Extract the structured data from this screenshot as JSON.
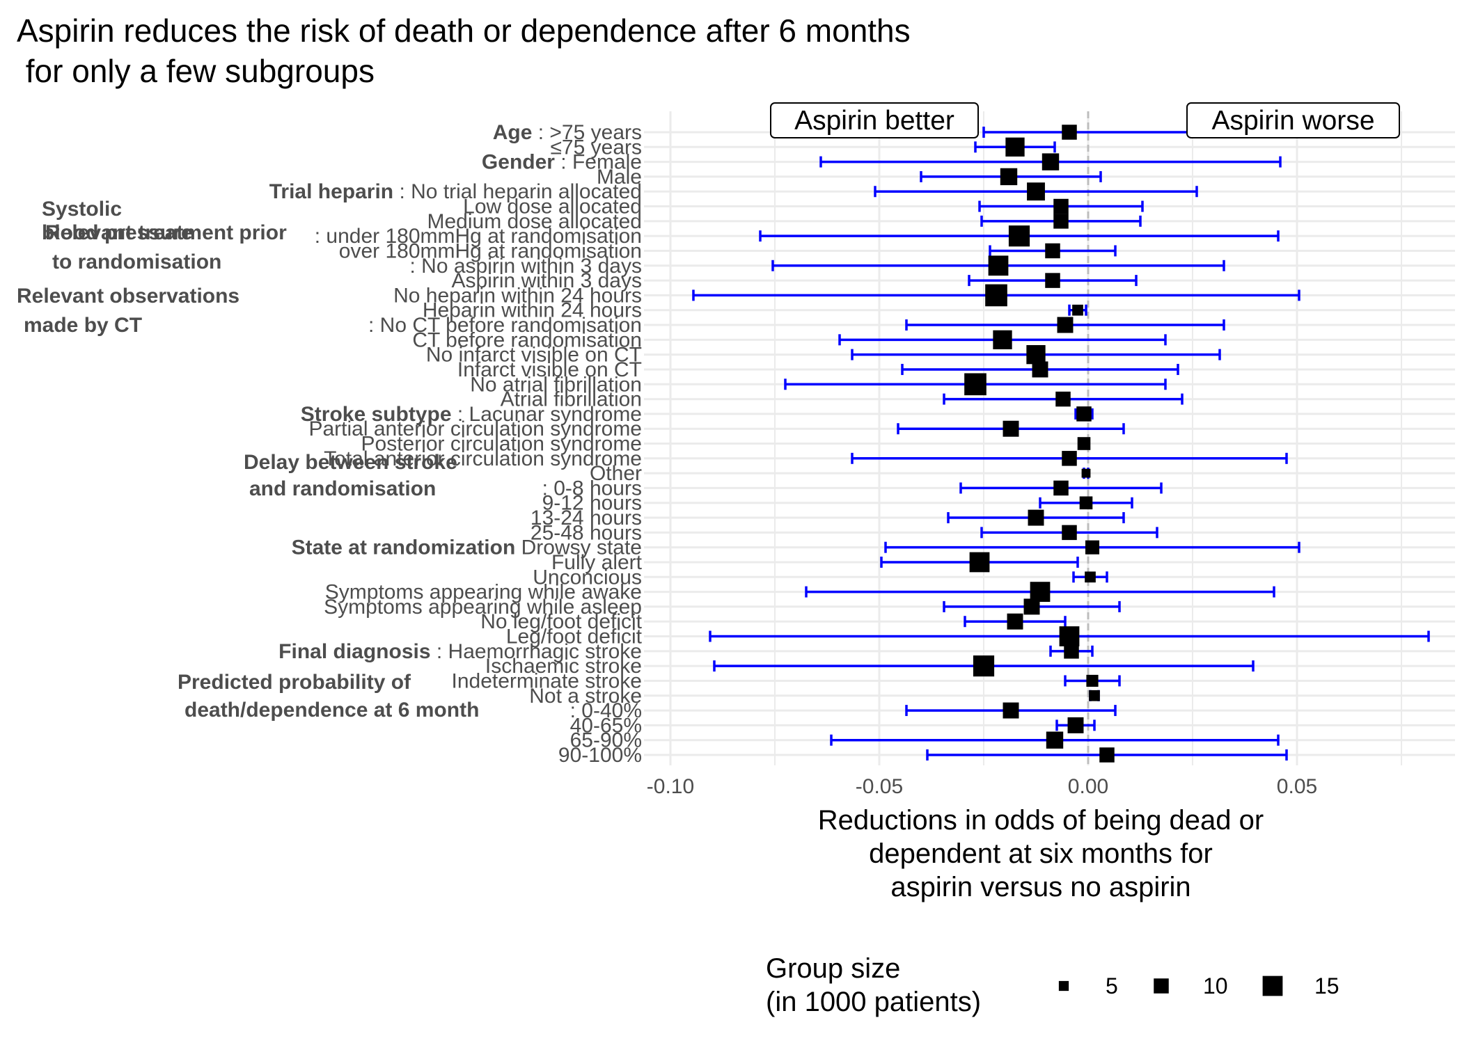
{
  "title_lines": [
    "Aspirin reduces the risk of death or dependence after 6 months",
    " for only a few subgroups"
  ],
  "chart_data": {
    "type": "forest",
    "title": "Aspirin reduces the risk of death or dependence after 6 months\n for only a few subgroups",
    "xlabel_lines": [
      "Reductions in odds of being dead or",
      "dependent at six months for",
      "aspirin versus no aspirin"
    ],
    "xlim": [
      -0.1,
      0.082
    ],
    "x_ticks": [
      -0.1,
      -0.05,
      0.0,
      0.05
    ],
    "x_tick_labels": [
      "-0.10",
      "-0.05",
      "0.00",
      "0.05"
    ],
    "reference_line": 0,
    "annotations": [
      {
        "text": "Aspirin better",
        "x": -0.05
      },
      {
        "text": "Aspirin worse",
        "x": 0.05
      }
    ],
    "rows": [
      {
        "group": "Age",
        "label": ">75 years",
        "est": -0.0045,
        "lo": -0.025,
        "hi": 0.025,
        "size": 10
      },
      {
        "group": "",
        "label": "≤75 years",
        "est": -0.0175,
        "lo": -0.027,
        "hi": -0.008,
        "size": 14
      },
      {
        "group": "Gender",
        "label": "Female",
        "est": -0.009,
        "lo": -0.064,
        "hi": 0.046,
        "size": 12
      },
      {
        "group": "",
        "label": "Male",
        "est": -0.019,
        "lo": -0.04,
        "hi": 0.003,
        "size": 12
      },
      {
        "group": "Trial heparin",
        "label": "No trial heparin allocated",
        "est": -0.0125,
        "lo": -0.051,
        "hi": 0.026,
        "size": 13
      },
      {
        "group": "",
        "label": "Low dose allocated",
        "est": -0.0065,
        "lo": -0.026,
        "hi": 0.013,
        "size": 10
      },
      {
        "group": "",
        "label": "Medium dose allocated",
        "est": -0.0065,
        "lo": -0.0255,
        "hi": 0.0125,
        "size": 10
      },
      {
        "group": "Systolic blood pressure",
        "label": "under 180mmHg at randomisation",
        "est": -0.0165,
        "lo": -0.0785,
        "hi": 0.0455,
        "size": 16
      },
      {
        "group": "",
        "label": "over 180mmHg at randomisation",
        "est": -0.0085,
        "lo": -0.0235,
        "hi": 0.0065,
        "size": 10
      },
      {
        "group": "Relevant treatment prior to randomisation",
        "label": "No aspirin within 3 days",
        "est": -0.0215,
        "lo": -0.0755,
        "hi": 0.0325,
        "size": 15
      },
      {
        "group": "",
        "label": "Aspirin within 3 days",
        "est": -0.0085,
        "lo": -0.0285,
        "hi": 0.0115,
        "size": 10
      },
      {
        "group": "",
        "label": "No heparin within 24 hours",
        "est": -0.022,
        "lo": -0.0945,
        "hi": 0.0505,
        "size": 17
      },
      {
        "group": "",
        "label": "Heparin within 24 hours",
        "est": -0.0025,
        "lo": -0.0045,
        "hi": -0.0005,
        "size": 6
      },
      {
        "group": "Relevant observations made by CT",
        "label": "No CT before randomisation",
        "est": -0.0055,
        "lo": -0.0435,
        "hi": 0.0325,
        "size": 11
      },
      {
        "group": "",
        "label": "CT before randomisation",
        "est": -0.0205,
        "lo": -0.0595,
        "hi": 0.0185,
        "size": 14
      },
      {
        "group": "",
        "label": "No infarct visible on CT",
        "est": -0.0125,
        "lo": -0.0565,
        "hi": 0.0315,
        "size": 14
      },
      {
        "group": "",
        "label": "Infarct visible on CT",
        "est": -0.0115,
        "lo": -0.0445,
        "hi": 0.0215,
        "size": 11
      },
      {
        "group": "",
        "label": "No atrial fibrillation",
        "est": -0.027,
        "lo": -0.0725,
        "hi": 0.0185,
        "size": 17
      },
      {
        "group": "",
        "label": "Atrial fibrillation",
        "est": -0.006,
        "lo": -0.0345,
        "hi": 0.0225,
        "size": 10
      },
      {
        "group": "Stroke subtype",
        "label": "Lacunar syndrome",
        "est": -0.001,
        "lo": -0.003,
        "hi": 0.001,
        "size": 10
      },
      {
        "group": "",
        "label": "Partial anterior circulation syndrome",
        "est": -0.0185,
        "lo": -0.0455,
        "hi": 0.0085,
        "size": 11
      },
      {
        "group": "",
        "label": "Posterior circulation syndrome",
        "est": -0.001,
        "lo": -0.0015,
        "hi": -0.0005,
        "size": 8
      },
      {
        "group": "",
        "label": "Total anterior circulation syndrome",
        "est": -0.0045,
        "lo": -0.0565,
        "hi": 0.0475,
        "size": 10
      },
      {
        "group": "",
        "label": "Other",
        "est": -0.0005,
        "lo": -0.001,
        "hi": 0.0,
        "size": 4
      },
      {
        "group": "Delay between stroke and randomisation",
        "label": "0-8 hours",
        "est": -0.0065,
        "lo": -0.0305,
        "hi": 0.0175,
        "size": 10
      },
      {
        "group": "",
        "label": "9-12 hours",
        "est": -0.0005,
        "lo": -0.0115,
        "hi": 0.0105,
        "size": 8
      },
      {
        "group": "",
        "label": "13-24 hours",
        "est": -0.0125,
        "lo": -0.0335,
        "hi": 0.0085,
        "size": 11
      },
      {
        "group": "",
        "label": "25-48 hours",
        "est": -0.0045,
        "lo": -0.0255,
        "hi": 0.0165,
        "size": 10
      },
      {
        "group": "State at randomization",
        "label": "Drowsy state",
        "est": 0.001,
        "lo": -0.0485,
        "hi": 0.0505,
        "size": 9
      },
      {
        "group": "",
        "label": "Fully alert",
        "est": -0.026,
        "lo": -0.0495,
        "hi": -0.0025,
        "size": 15
      },
      {
        "group": "",
        "label": "Unconcious",
        "est": 0.0005,
        "lo": -0.0035,
        "hi": 0.0045,
        "size": 6
      },
      {
        "group": "",
        "label": "Symptoms appearing while awake",
        "est": -0.0115,
        "lo": -0.0675,
        "hi": 0.0445,
        "size": 15
      },
      {
        "group": "",
        "label": "Symptoms appearing while asleep",
        "est": -0.0135,
        "lo": -0.0345,
        "hi": 0.0075,
        "size": 11
      },
      {
        "group": "",
        "label": "No leg/foot deficit",
        "est": -0.0175,
        "lo": -0.0295,
        "hi": -0.0055,
        "size": 11
      },
      {
        "group": "",
        "label": "Leg/foot deficit",
        "est": -0.0045,
        "lo": -0.0905,
        "hi": 0.0815,
        "size": 15
      },
      {
        "group": "Final diagnosis",
        "label": "Haemorrhagic stroke",
        "est": -0.004,
        "lo": -0.009,
        "hi": 0.001,
        "size": 10
      },
      {
        "group": "",
        "label": "Ischaemic stroke",
        "est": -0.025,
        "lo": -0.0895,
        "hi": 0.0395,
        "size": 16
      },
      {
        "group": "",
        "label": "Indeterminate stroke",
        "est": 0.001,
        "lo": -0.0055,
        "hi": 0.0075,
        "size": 7
      },
      {
        "group": "",
        "label": "Not a stroke",
        "est": 0.0015,
        "lo": 0.0005,
        "hi": 0.0025,
        "size": 6
      },
      {
        "group": "Predicted probability of death/dependence at 6 month",
        "label": "0-40%",
        "est": -0.0185,
        "lo": -0.0435,
        "hi": 0.0065,
        "size": 11
      },
      {
        "group": "",
        "label": "40-65%",
        "est": -0.003,
        "lo": -0.0075,
        "hi": 0.0015,
        "size": 11
      },
      {
        "group": "",
        "label": "65-90%",
        "est": -0.008,
        "lo": -0.0615,
        "hi": 0.0455,
        "size": 12
      },
      {
        "group": "",
        "label": "90-100%",
        "est": 0.0045,
        "lo": -0.0385,
        "hi": 0.0475,
        "size": 10
      }
    ],
    "legend": {
      "title_lines": [
        "Group size",
        " (in 1000 patients)"
      ],
      "entries": [
        {
          "label": "5",
          "size": 5
        },
        {
          "label": "10",
          "size": 10
        },
        {
          "label": "15",
          "size": 15
        }
      ]
    },
    "colors": {
      "error_bar": "#0000ff",
      "point": "#000000",
      "grid": "#ebebeb",
      "reference": "#bdbdbd"
    }
  }
}
